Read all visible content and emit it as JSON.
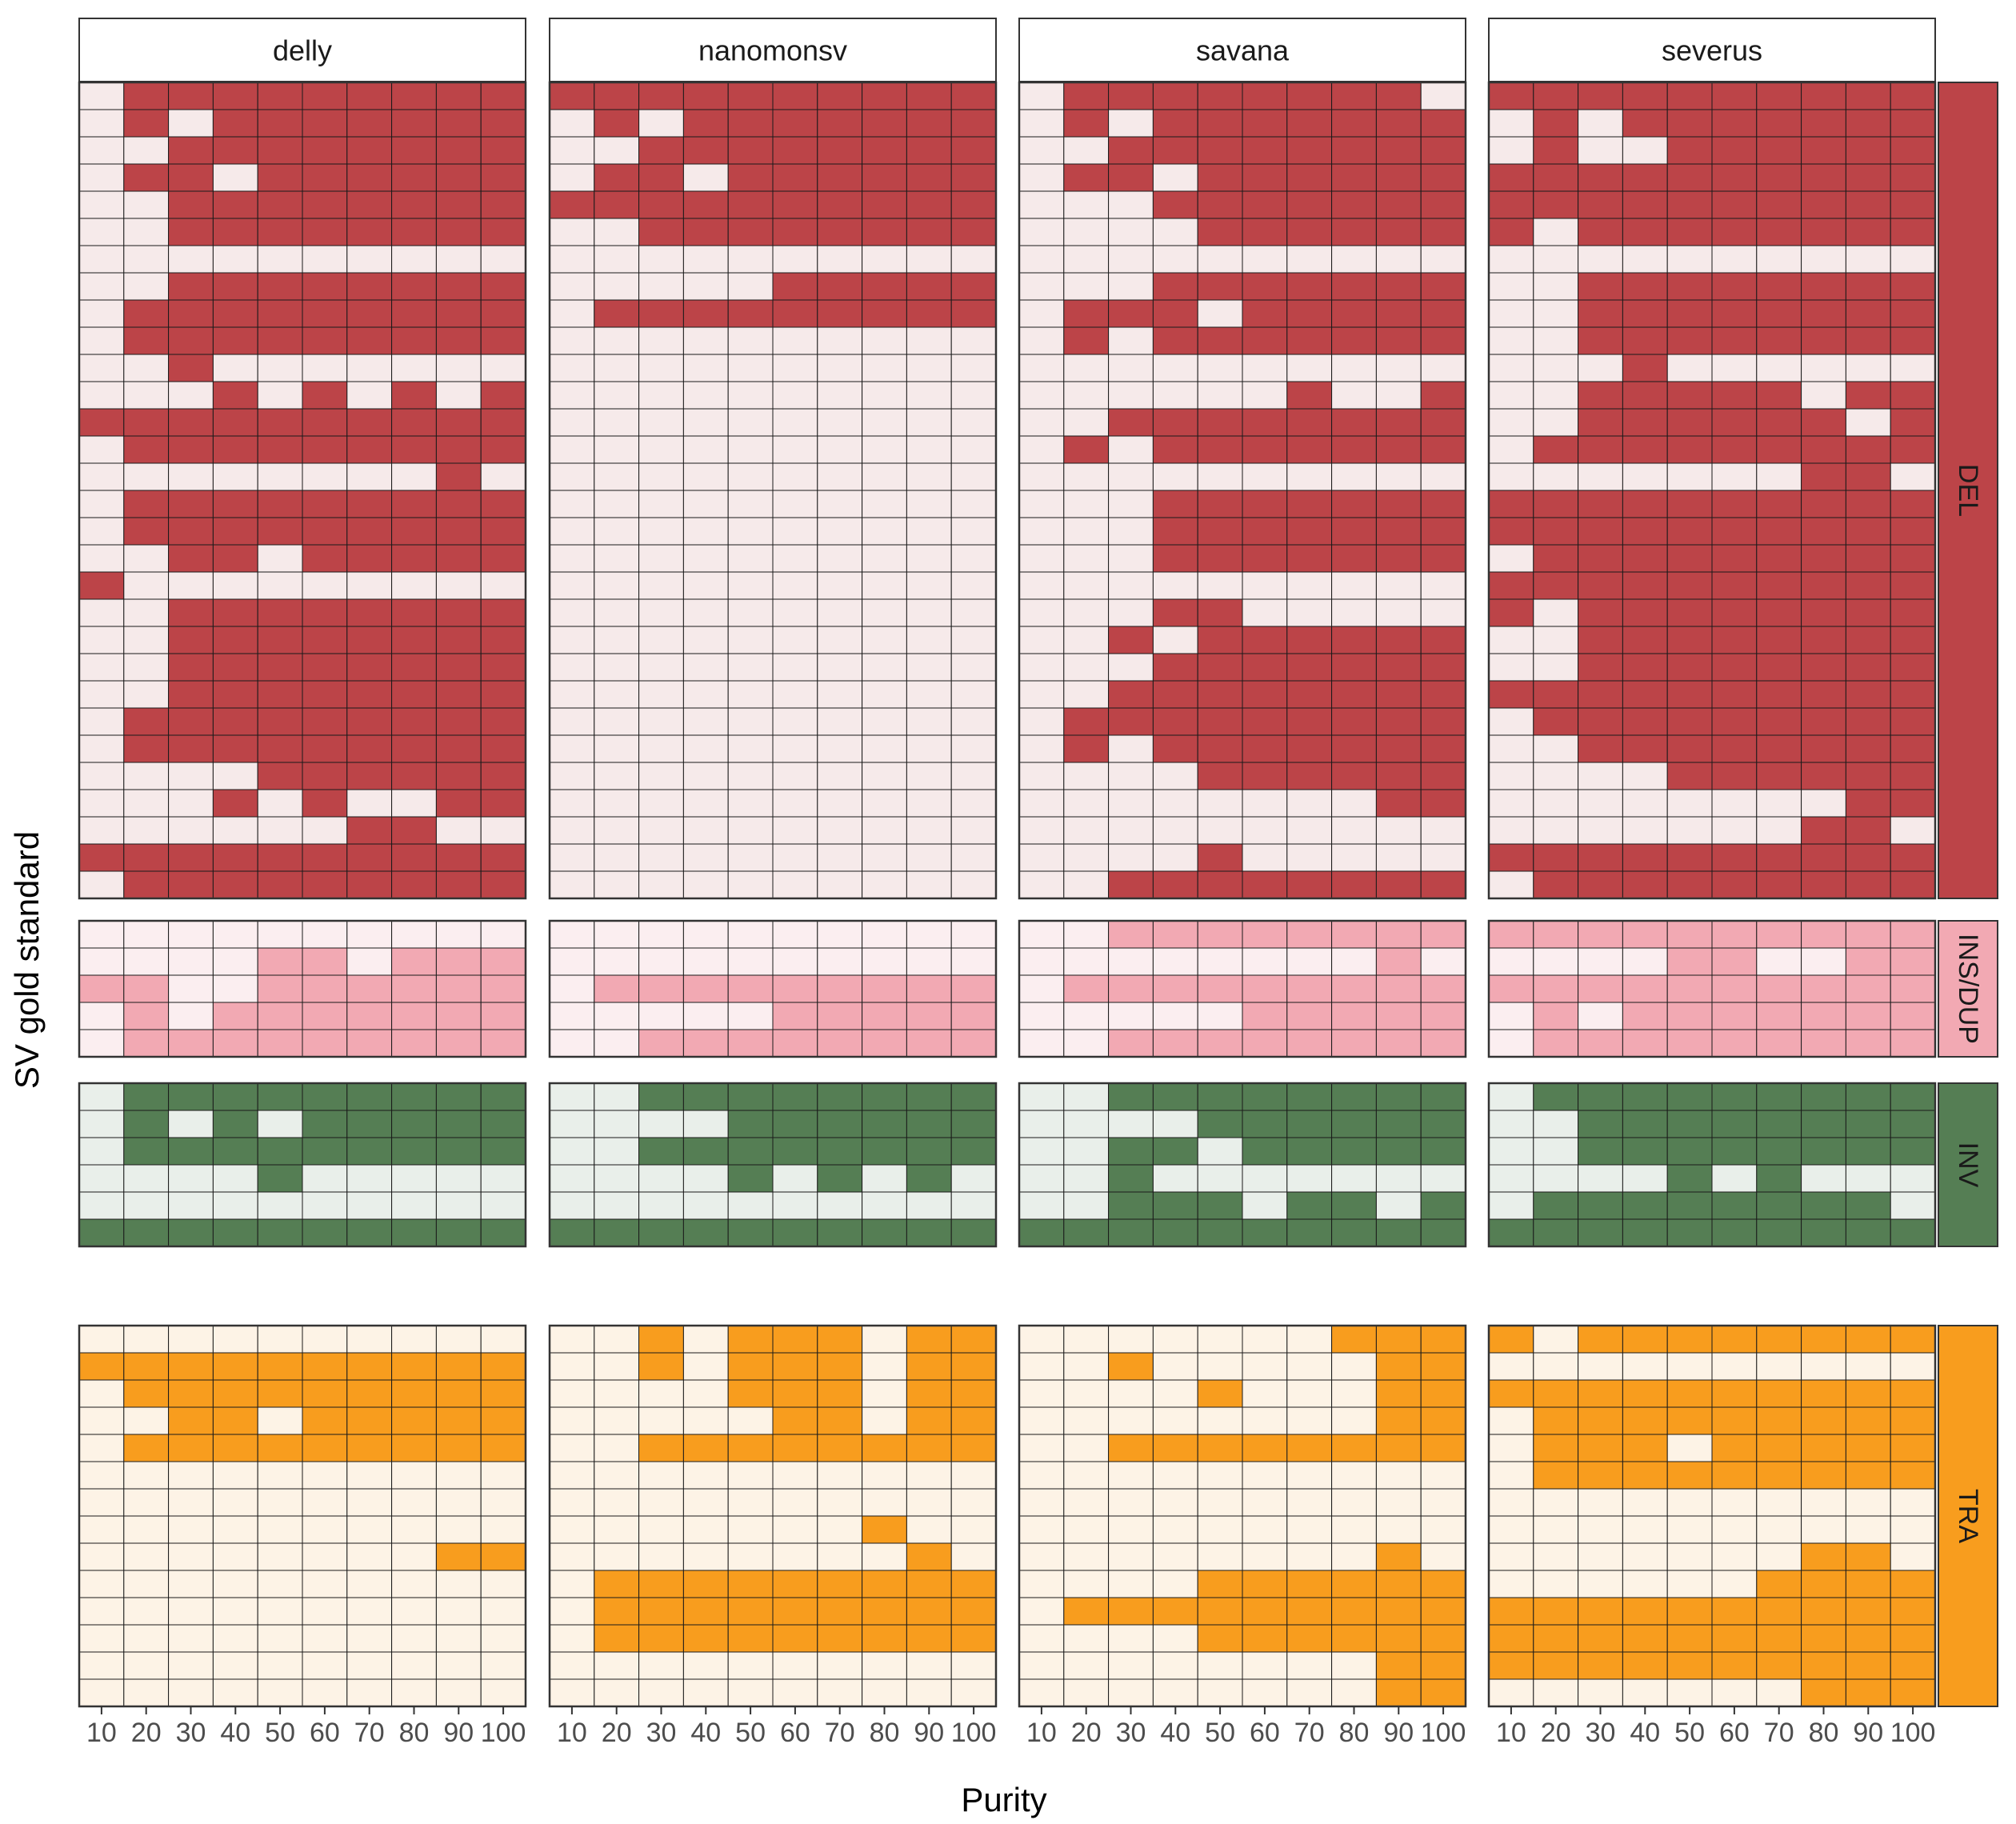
{
  "chart_data": {
    "type": "heatmap",
    "ylabel": "SV gold standard",
    "xlabel": "Purity",
    "x": [
      10,
      20,
      30,
      40,
      50,
      60,
      70,
      80,
      90,
      100
    ],
    "x_tick_labels": [
      "10",
      "20",
      "30",
      "40",
      "50",
      "60",
      "70",
      "80",
      "90",
      "100"
    ],
    "tools": [
      "delly",
      "nanomonsv",
      "savana",
      "severus"
    ],
    "grid": true,
    "value_encoding": "1 = detected (filled cell), 0 = not detected (pale cell)",
    "sv_types": [
      {
        "name": "DEL",
        "color": "#BC4448",
        "pale": "#F6EAEA",
        "rows": 30,
        "matrices": {
          "delly": [
            "0111111111",
            "0101111111",
            "0011111111",
            "0110111111",
            "0011111111",
            "0011111111",
            "0000000000",
            "0011111111",
            "0111111111",
            "0111111111",
            "0010000000",
            "0001010101",
            "1111111111",
            "0111111111",
            "0000000010",
            "0111111111",
            "0111111111",
            "0011011111",
            "1000000000",
            "0011111111",
            "0011111111",
            "0011111111",
            "0011111111",
            "0111111111",
            "0111111111",
            "0000111111",
            "0001010011",
            "0000001100",
            "1111111111",
            "0111111111"
          ],
          "nanomonsv": [
            "1111111111",
            "0101111111",
            "0011111111",
            "0110111111",
            "1111111111",
            "0011111111",
            "0000000000",
            "0000011111",
            "0111111111",
            "0000000000",
            "0000000000",
            "0000000000",
            "0000000000",
            "0000000000",
            "0000000000",
            "0000000000",
            "0000000000",
            "0000000000",
            "0000000000",
            "0000000000",
            "0000000000",
            "0000000000",
            "0000000000",
            "0000000000",
            "0000000000",
            "0000000000",
            "0000000000",
            "0000000000",
            "0000000000",
            "0000000000"
          ],
          "savana": [
            "0111111110",
            "0101111111",
            "0011111111",
            "0110111111",
            "0001111111",
            "0000111111",
            "0000000000",
            "0001111111",
            "0111011111",
            "0101111111",
            "0000000000",
            "0000001001",
            "0011111111",
            "0101111111",
            "0000000000",
            "0001111111",
            "0001111111",
            "0001111111",
            "0000000000",
            "0001100000",
            "0010111111",
            "0001111111",
            "0011111111",
            "0111111111",
            "0101111111",
            "0000111111",
            "0000000011",
            "0000000000",
            "0000100000",
            "0011111111"
          ],
          "severus": [
            "1111111111",
            "0101111111",
            "0100111111",
            "1111111111",
            "1111111111",
            "1011111111",
            "0000000000",
            "0011111111",
            "0011111111",
            "0011111111",
            "0001000000",
            "0011111011",
            "0011111101",
            "0111111111",
            "0000000110",
            "1111111111",
            "1111111111",
            "0111111111",
            "1111111111",
            "1011111111",
            "0011111111",
            "0011111111",
            "1111111111",
            "0111111111",
            "0011111111",
            "0000111111",
            "0000000011",
            "0000000110",
            "1111111111",
            "0111111111"
          ]
        }
      },
      {
        "name": "INS/DUP",
        "color": "#F2A9B3",
        "pale": "#FBEEF0",
        "rows": 5,
        "matrices": {
          "delly": [
            "0000000000",
            "0000110111",
            "1100111111",
            "0101111111",
            "0111111111"
          ],
          "nanomonsv": [
            "0000000000",
            "0000000000",
            "0111111111",
            "0000011111",
            "0011111111"
          ],
          "savana": [
            "0011111111",
            "0000000010",
            "0111111111",
            "0000011111",
            "0011111111"
          ],
          "severus": [
            "1111111111",
            "0000110011",
            "1111111111",
            "0101111111",
            "0111111111"
          ]
        }
      },
      {
        "name": "INV",
        "color": "#557E54",
        "pale": "#E9EFEA",
        "rows": 6,
        "matrices": {
          "delly": [
            "0111111111",
            "0101011111",
            "0111111111",
            "0000100000",
            "0000000000",
            "1111111111"
          ],
          "nanomonsv": [
            "0011111111",
            "0000111111",
            "0011111111",
            "0000101010",
            "0000000000",
            "1111111111"
          ],
          "savana": [
            "0011111111",
            "0000111111",
            "0011011111",
            "0010000000",
            "0011101101",
            "1111111111"
          ],
          "severus": [
            "0111111111",
            "0011111111",
            "0011111111",
            "0000101000",
            "0111111110",
            "1111111111"
          ]
        }
      },
      {
        "name": "TRA",
        "color": "#F89D1E",
        "pale": "#FDF3E6",
        "rows": 14,
        "matrices": {
          "delly": [
            "0000000000",
            "1111111111",
            "0111111111",
            "0011011111",
            "0111111111",
            "0000000000",
            "0000000000",
            "0000000000",
            "0000000011",
            "0000000000",
            "0000000000",
            "0000000000",
            "0000000000",
            "0000000000"
          ],
          "nanomonsv": [
            "0010111011",
            "0010111011",
            "0000111011",
            "0000011011",
            "0011111111",
            "0000000000",
            "0000000000",
            "0000000100",
            "0000000010",
            "0111111111",
            "0111111111",
            "0111111111",
            "0000000000",
            "0000000000"
          ],
          "savana": [
            "0000000111",
            "0010000011",
            "0000100011",
            "0000000011",
            "0011111111",
            "0000000000",
            "0000000000",
            "0000000000",
            "0000000010",
            "0000111111",
            "0111111111",
            "0000111111",
            "0000000011",
            "0000000011"
          ],
          "severus": [
            "1011111111",
            "0000000000",
            "1111111111",
            "0111111111",
            "0111011111",
            "0111111111",
            "0000000000",
            "0000000000",
            "0000000110",
            "0000001111",
            "1111111111",
            "1111111111",
            "1111111111",
            "0000000111"
          ]
        }
      }
    ]
  }
}
